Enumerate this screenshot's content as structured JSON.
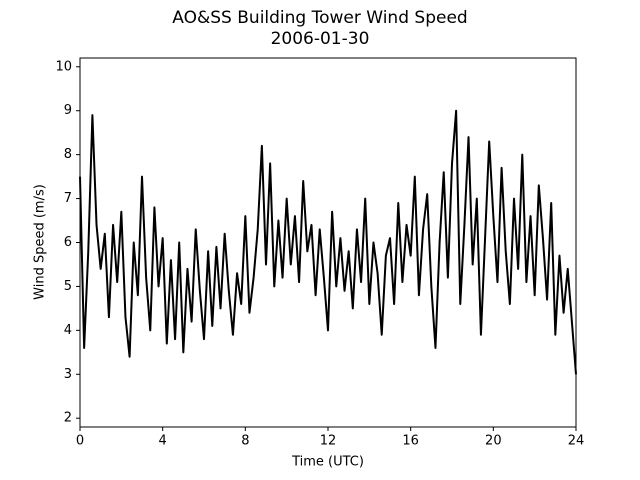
{
  "chart_data": {
    "type": "line",
    "title": "AO&SS Building Tower Wind Speed",
    "subtitle": "2006-01-30",
    "x_label": "Time (UTC)",
    "y_label": "Wind Speed (m/s)",
    "color": "#000000",
    "x": [
      0,
      0.2,
      0.4,
      0.6,
      0.8,
      1,
      1.2,
      1.4,
      1.6,
      1.8,
      2,
      2.2,
      2.4,
      2.6,
      2.8,
      3,
      3.2,
      3.4,
      3.6,
      3.8,
      4,
      4.2,
      4.4,
      4.6,
      4.8,
      5,
      5.2,
      5.4,
      5.6,
      5.8,
      6,
      6.2,
      6.4,
      6.6,
      6.8,
      7,
      7.2,
      7.4,
      7.6,
      7.8,
      8,
      8.2,
      8.4,
      8.6,
      8.8,
      9,
      9.2,
      9.4,
      9.6,
      9.8,
      10,
      10.2,
      10.4,
      10.6,
      10.8,
      11,
      11.2,
      11.4,
      11.6,
      11.8,
      12,
      12.2,
      12.4,
      12.6,
      12.8,
      13,
      13.2,
      13.4,
      13.6,
      13.8,
      14,
      14.2,
      14.4,
      14.6,
      14.8,
      15,
      15.2,
      15.4,
      15.6,
      15.8,
      16,
      16.2,
      16.4,
      16.6,
      16.8,
      17,
      17.2,
      17.4,
      17.6,
      17.8,
      18,
      18.2,
      18.4,
      18.6,
      18.8,
      19,
      19.2,
      19.4,
      19.6,
      19.8,
      20,
      20.2,
      20.4,
      20.6,
      20.8,
      21,
      21.2,
      21.4,
      21.6,
      21.8,
      22,
      22.2,
      22.4,
      22.6,
      22.8,
      23,
      23.2,
      23.4,
      23.6,
      23.8,
      24
    ],
    "values": [
      7.5,
      3.6,
      5.8,
      8.9,
      6.4,
      5.4,
      6.2,
      4.3,
      6.4,
      5.1,
      6.7,
      4.3,
      3.4,
      6.0,
      4.8,
      7.5,
      5.2,
      4.0,
      6.8,
      5.0,
      6.1,
      3.7,
      5.6,
      3.8,
      6.0,
      3.5,
      5.4,
      4.2,
      6.3,
      4.9,
      3.8,
      5.8,
      4.1,
      5.9,
      4.5,
      6.2,
      4.9,
      3.9,
      5.3,
      4.6,
      6.6,
      4.4,
      5.2,
      6.3,
      8.2,
      5.5,
      7.8,
      5.0,
      6.5,
      5.2,
      7.0,
      5.5,
      6.6,
      5.1,
      7.4,
      5.8,
      6.4,
      4.8,
      6.3,
      5.2,
      4.0,
      6.7,
      5.0,
      6.1,
      4.9,
      5.8,
      4.5,
      6.3,
      5.1,
      7.0,
      4.6,
      6.0,
      5.3,
      3.9,
      5.7,
      6.1,
      4.6,
      6.9,
      5.1,
      6.4,
      5.7,
      7.5,
      4.8,
      6.3,
      7.1,
      5.0,
      3.6,
      6.0,
      7.6,
      5.2,
      7.8,
      9.0,
      4.6,
      6.4,
      8.4,
      5.5,
      7.0,
      3.9,
      6.1,
      8.3,
      6.6,
      5.1,
      7.7,
      5.8,
      4.6,
      7.0,
      5.4,
      8.0,
      5.1,
      6.6,
      4.8,
      7.3,
      6.1,
      4.7,
      6.9,
      3.9,
      5.7,
      4.4,
      5.4,
      4.2,
      3.0
    ],
    "xlim": [
      0,
      24
    ],
    "xticks": [
      0,
      4,
      8,
      12,
      16,
      20,
      24
    ],
    "ylim": [
      1.8,
      10.2
    ],
    "yticks": [
      2,
      3,
      4,
      5,
      6,
      7,
      8,
      9,
      10
    ]
  }
}
